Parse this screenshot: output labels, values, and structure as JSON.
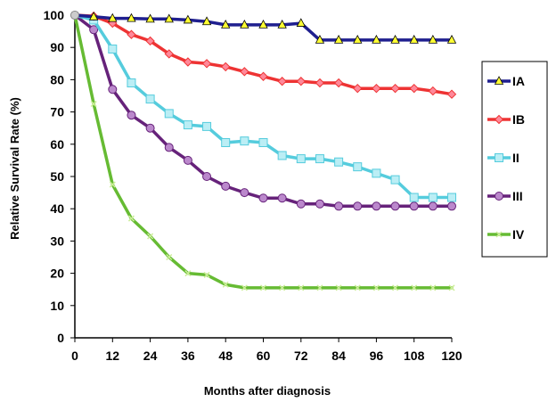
{
  "chart_data": {
    "type": "line",
    "title": "",
    "xlabel": "Months after diagnosis",
    "ylabel": "Relative Survival Rate (%)",
    "xlim": [
      0,
      120
    ],
    "ylim": [
      0,
      100
    ],
    "xticks": [
      0,
      12,
      24,
      36,
      48,
      60,
      72,
      84,
      96,
      108,
      120
    ],
    "yticks": [
      0,
      10,
      20,
      30,
      40,
      50,
      60,
      70,
      80,
      90,
      100
    ],
    "grid": false,
    "legend_position": "right",
    "series": [
      {
        "name": "IA",
        "color": "#1f1f8f",
        "marker": "triangle",
        "marker_fill": "#ffff33",
        "x": [
          0,
          6,
          12,
          18,
          24,
          30,
          36,
          42,
          48,
          54,
          60,
          66,
          72,
          78,
          84,
          90,
          96,
          102,
          108,
          114,
          120
        ],
        "y": [
          100,
          99.5,
          99,
          99,
          98.8,
          98.8,
          98.5,
          98,
          97,
          97,
          97,
          97,
          97.5,
          92.3,
          92.3,
          92.3,
          92.3,
          92.3,
          92.3,
          92.3,
          92.3
        ]
      },
      {
        "name": "IB",
        "color": "#ee3333",
        "marker": "diamond",
        "marker_fill": "#ff8899",
        "x": [
          0,
          6,
          12,
          18,
          24,
          30,
          36,
          42,
          48,
          54,
          60,
          66,
          72,
          78,
          84,
          90,
          96,
          102,
          108,
          114,
          120
        ],
        "y": [
          100,
          99.7,
          97.5,
          94,
          92,
          88,
          85.5,
          85,
          84,
          82.5,
          81,
          79.5,
          79.5,
          79,
          79,
          77.3,
          77.3,
          77.3,
          77.3,
          76.5,
          75.5
        ]
      },
      {
        "name": "II",
        "color": "#55ccdd",
        "marker": "square",
        "marker_fill": "#bbeef5",
        "x": [
          0,
          6,
          12,
          18,
          24,
          30,
          36,
          42,
          48,
          54,
          60,
          66,
          72,
          78,
          84,
          90,
          96,
          102,
          108,
          114,
          120
        ],
        "y": [
          100,
          98.5,
          89.5,
          79,
          74,
          69.5,
          66,
          65.5,
          60.5,
          61,
          60.5,
          56.5,
          55.5,
          55.5,
          54.5,
          53,
          51,
          49,
          43.5,
          43.5,
          43.5
        ]
      },
      {
        "name": "III",
        "color": "#66227a",
        "marker": "circle",
        "marker_fill": "#bb88cc",
        "x": [
          0,
          6,
          12,
          18,
          24,
          30,
          36,
          42,
          48,
          54,
          60,
          66,
          72,
          78,
          84,
          90,
          96,
          102,
          108,
          114,
          120
        ],
        "y": [
          100,
          95.5,
          77,
          69,
          65,
          59,
          55,
          50,
          47,
          45,
          43.3,
          43.3,
          41.5,
          41.5,
          40.8,
          40.8,
          40.8,
          40.8,
          40.8,
          40.8,
          40.8
        ]
      },
      {
        "name": "IV",
        "color": "#66bb33",
        "marker": "x",
        "marker_fill": "#ccee99",
        "x": [
          0,
          6,
          12,
          18,
          24,
          30,
          36,
          42,
          48,
          54,
          60,
          66,
          72,
          78,
          84,
          90,
          96,
          102,
          108,
          114,
          120
        ],
        "y": [
          100,
          72.5,
          47.5,
          37,
          31.5,
          25,
          20,
          19.5,
          16.5,
          15.5,
          15.5,
          15.5,
          15.5,
          15.5,
          15.5,
          15.5,
          15.5,
          15.5,
          15.5,
          15.5,
          15.5
        ]
      }
    ]
  }
}
